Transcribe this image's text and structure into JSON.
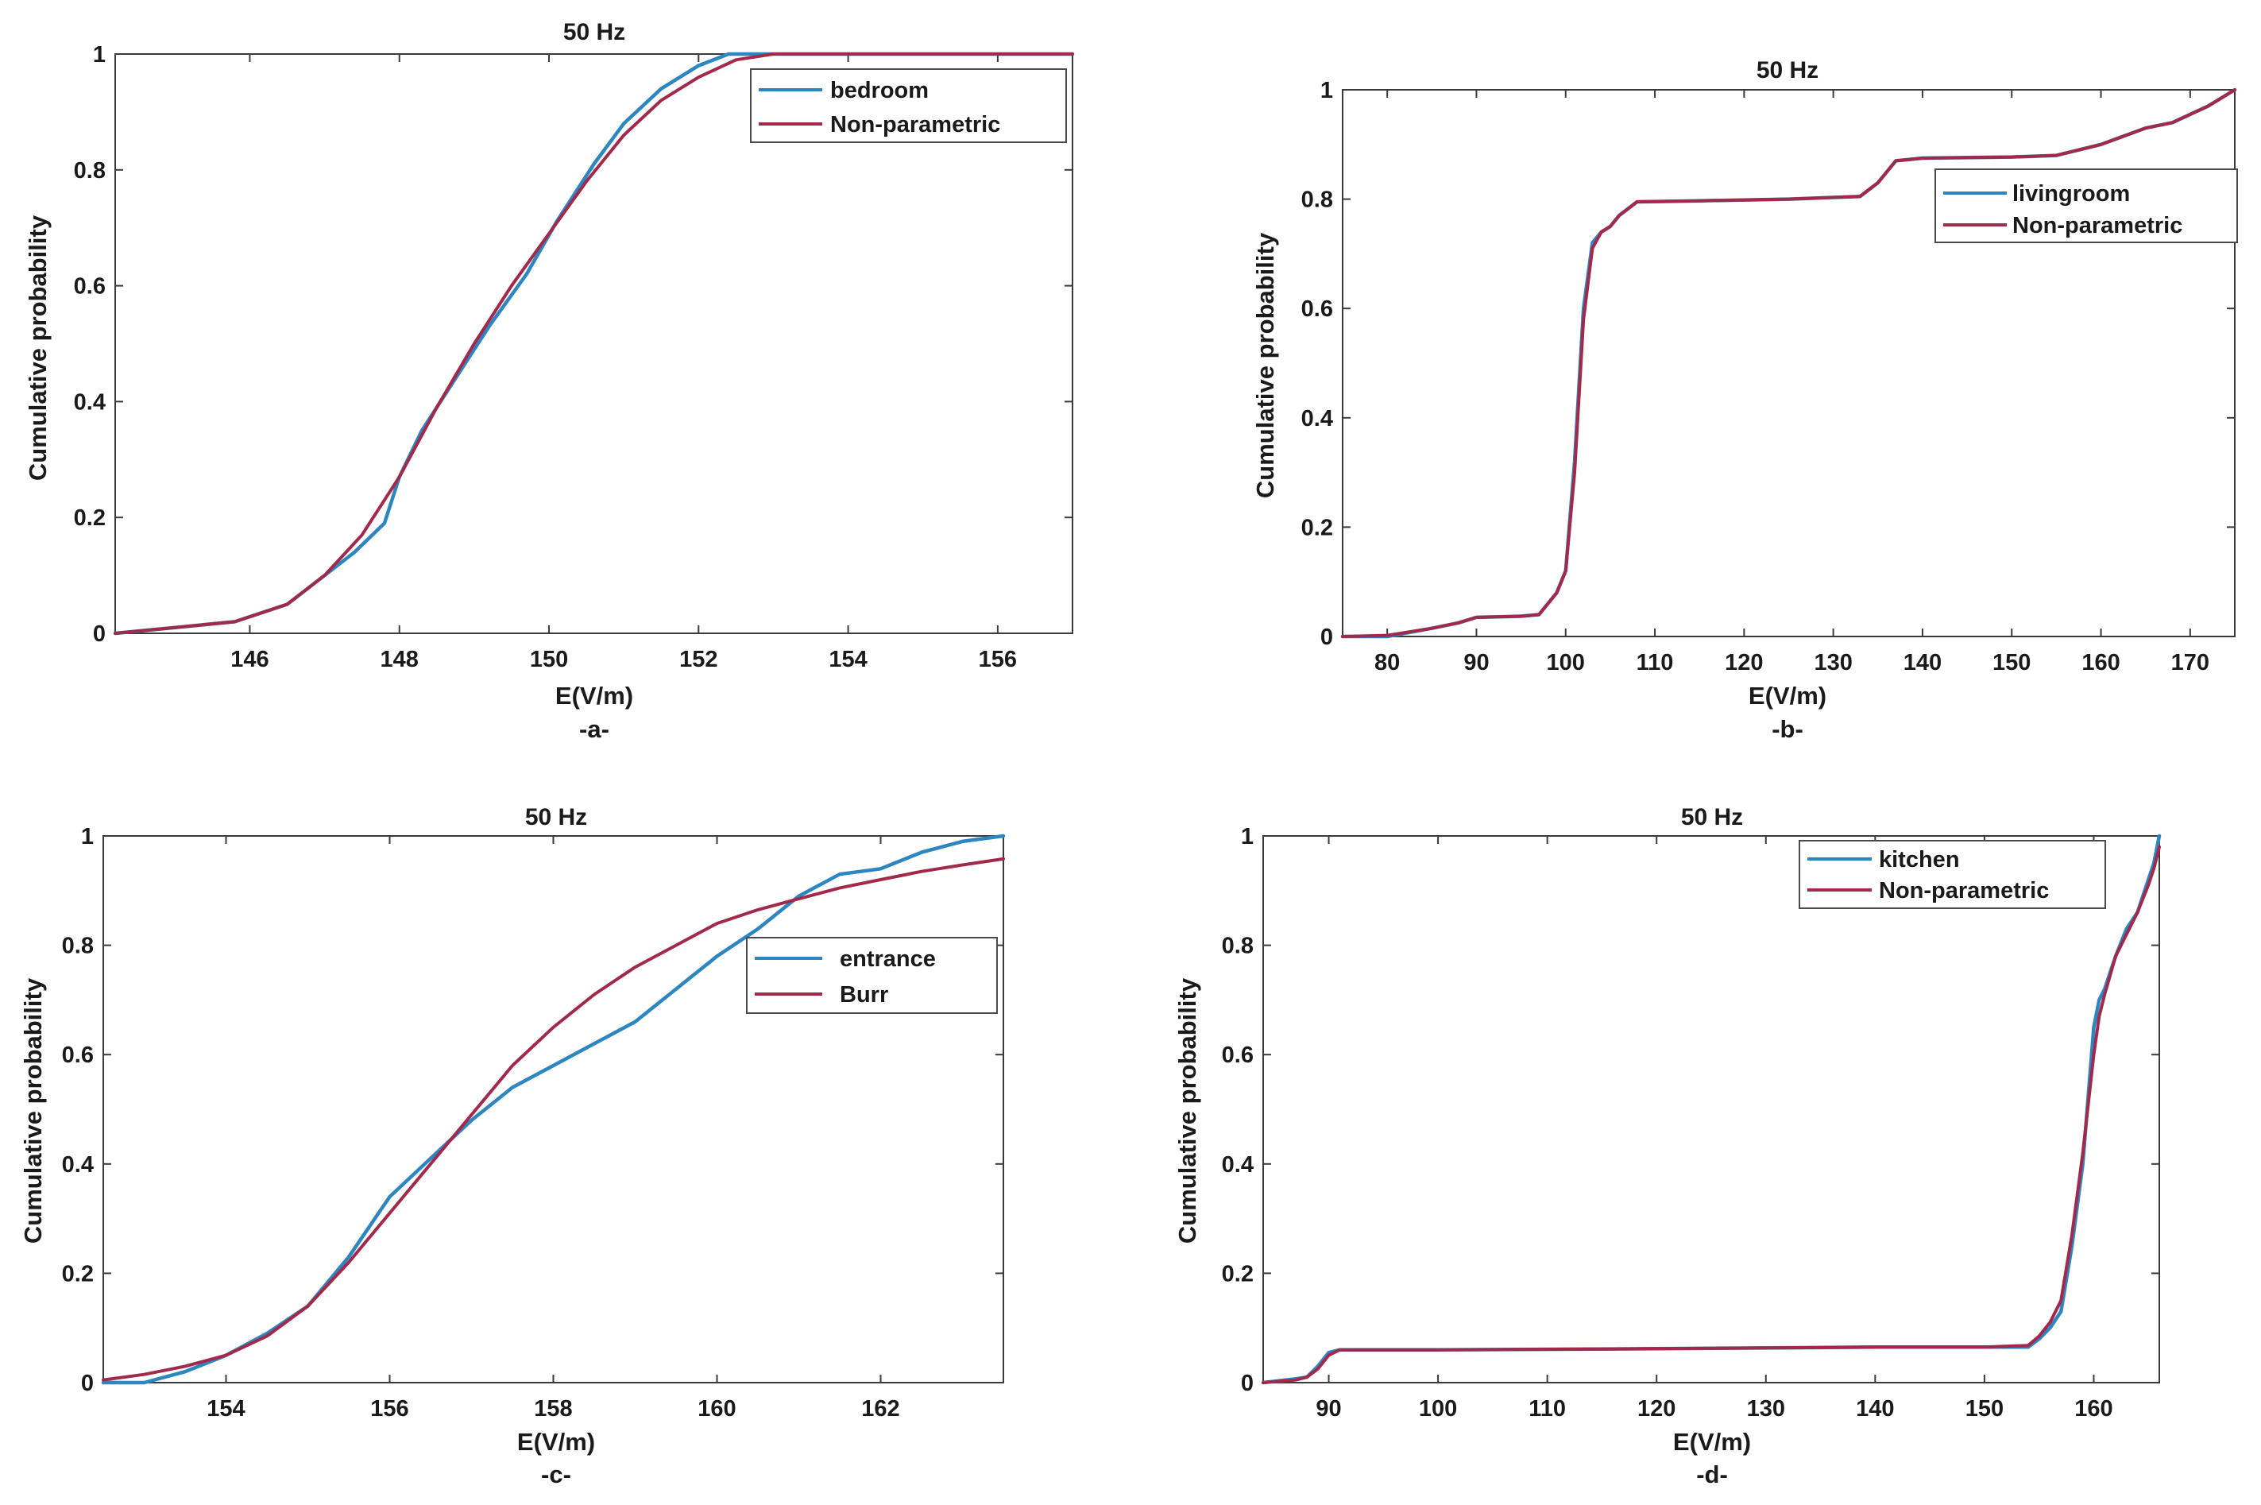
{
  "colors": {
    "empirical": "#2E86C1",
    "fitted": "#A2294A"
  },
  "chart_data": [
    {
      "type": "line",
      "panel": "-a-",
      "title": "50 Hz",
      "xlabel": "E(V/m)",
      "ylabel": "Cumulative probability",
      "xlim": [
        144.2,
        157
      ],
      "ylim": [
        0,
        1
      ],
      "xticks": [
        146,
        148,
        150,
        152,
        154,
        156
      ],
      "yticks": [
        0,
        0.2,
        0.4,
        0.6,
        0.8,
        1
      ],
      "legend_position": "top-right",
      "series": [
        {
          "name": "bedroom",
          "role": "empirical",
          "x": [
            144.2,
            145,
            145.8,
            146.5,
            147,
            147.4,
            147.8,
            148,
            148.3,
            148.7,
            149.2,
            149.7,
            150.1,
            150.6,
            151,
            151.5,
            152,
            152.4,
            152.8,
            153.5,
            157
          ],
          "y": [
            0,
            0.01,
            0.02,
            0.05,
            0.1,
            0.14,
            0.19,
            0.27,
            0.35,
            0.43,
            0.53,
            0.62,
            0.71,
            0.81,
            0.88,
            0.94,
            0.98,
            1,
            1,
            1,
            1
          ]
        },
        {
          "name": "Non-parametric",
          "role": "fitted",
          "x": [
            144.2,
            145,
            145.8,
            146.5,
            147,
            147.5,
            148,
            148.5,
            149,
            149.5,
            150,
            150.5,
            151,
            151.5,
            152,
            152.5,
            153,
            154,
            157
          ],
          "y": [
            0,
            0.01,
            0.02,
            0.05,
            0.1,
            0.17,
            0.27,
            0.39,
            0.5,
            0.6,
            0.69,
            0.78,
            0.86,
            0.92,
            0.96,
            0.99,
            1,
            1,
            1
          ]
        }
      ]
    },
    {
      "type": "line",
      "panel": "-b-",
      "title": "50 Hz",
      "xlabel": "E(V/m)",
      "ylabel": "Cumulative probability",
      "xlim": [
        75,
        175
      ],
      "ylim": [
        0,
        1
      ],
      "xticks": [
        80,
        90,
        100,
        110,
        120,
        130,
        140,
        150,
        160,
        170
      ],
      "yticks": [
        0,
        0.2,
        0.4,
        0.6,
        0.8,
        1
      ],
      "legend_position": "top-right",
      "series": [
        {
          "name": "livingroom",
          "role": "empirical",
          "x": [
            75,
            80,
            85,
            88,
            90,
            95,
            97,
            99,
            100,
            101,
            102,
            103,
            104,
            105,
            106,
            108,
            115,
            125,
            133,
            135,
            137,
            140,
            150,
            155,
            160,
            165,
            168,
            172,
            175
          ],
          "y": [
            0,
            0,
            0.015,
            0.025,
            0.035,
            0.037,
            0.04,
            0.08,
            0.12,
            0.32,
            0.6,
            0.72,
            0.74,
            0.75,
            0.77,
            0.795,
            0.797,
            0.8,
            0.805,
            0.83,
            0.87,
            0.875,
            0.877,
            0.88,
            0.9,
            0.93,
            0.94,
            0.97,
            1
          ]
        },
        {
          "name": "Non-parametric",
          "role": "fitted",
          "x": [
            75,
            80,
            85,
            88,
            90,
            95,
            97,
            99,
            100,
            101,
            102,
            103,
            104,
            105,
            106,
            108,
            115,
            125,
            133,
            135,
            137,
            140,
            150,
            155,
            160,
            165,
            168,
            172,
            175
          ],
          "y": [
            0,
            0.002,
            0.015,
            0.025,
            0.035,
            0.037,
            0.04,
            0.08,
            0.12,
            0.3,
            0.58,
            0.71,
            0.74,
            0.75,
            0.77,
            0.795,
            0.797,
            0.8,
            0.805,
            0.83,
            0.87,
            0.875,
            0.877,
            0.88,
            0.9,
            0.93,
            0.94,
            0.97,
            1
          ]
        }
      ]
    },
    {
      "type": "line",
      "panel": "-c-",
      "title": "50 Hz",
      "xlabel": "E(V/m)",
      "ylabel": "Cumulative probability",
      "xlim": [
        152.5,
        163.5
      ],
      "ylim": [
        0,
        1
      ],
      "xticks": [
        154,
        156,
        158,
        160,
        162
      ],
      "yticks": [
        0,
        0.2,
        0.4,
        0.6,
        0.8,
        1
      ],
      "legend_position": "right",
      "series": [
        {
          "name": "entrance",
          "role": "empirical",
          "x": [
            152.5,
            153,
            153.5,
            154,
            154.5,
            155,
            155.5,
            156,
            156.5,
            157,
            157.5,
            158,
            158.5,
            159,
            159.5,
            160,
            160.5,
            161,
            161.5,
            162,
            162.5,
            163,
            163.5
          ],
          "y": [
            0,
            0,
            0.02,
            0.05,
            0.09,
            0.14,
            0.23,
            0.34,
            0.41,
            0.48,
            0.54,
            0.58,
            0.62,
            0.66,
            0.72,
            0.78,
            0.83,
            0.89,
            0.93,
            0.94,
            0.97,
            0.99,
            1
          ]
        },
        {
          "name": "Burr",
          "role": "fitted",
          "x": [
            152.5,
            153,
            153.5,
            154,
            154.5,
            155,
            155.5,
            156,
            156.5,
            157,
            157.5,
            158,
            158.5,
            159,
            159.5,
            160,
            160.5,
            161,
            161.5,
            162,
            162.5,
            163,
            163.5
          ],
          "y": [
            0.005,
            0.015,
            0.03,
            0.05,
            0.085,
            0.14,
            0.22,
            0.31,
            0.4,
            0.49,
            0.58,
            0.65,
            0.71,
            0.76,
            0.8,
            0.84,
            0.865,
            0.885,
            0.905,
            0.92,
            0.935,
            0.947,
            0.958
          ]
        }
      ]
    },
    {
      "type": "line",
      "panel": "-d-",
      "title": "50 Hz",
      "xlabel": "E(V/m)",
      "ylabel": "Cumulative probability",
      "xlim": [
        84,
        166
      ],
      "ylim": [
        0,
        1
      ],
      "xticks": [
        90,
        100,
        110,
        120,
        130,
        140,
        150,
        160
      ],
      "yticks": [
        0,
        0.2,
        0.4,
        0.6,
        0.8,
        1
      ],
      "legend_position": "top-right",
      "series": [
        {
          "name": "kitchen",
          "role": "empirical",
          "x": [
            84,
            87,
            88,
            89,
            90,
            91,
            100,
            120,
            140,
            150,
            154,
            155,
            156,
            157,
            158,
            159,
            160,
            160.5,
            161,
            162,
            163,
            164,
            165,
            165.5,
            166
          ],
          "y": [
            0,
            0.007,
            0.01,
            0.03,
            0.055,
            0.06,
            0.06,
            0.062,
            0.065,
            0.065,
            0.065,
            0.08,
            0.1,
            0.13,
            0.25,
            0.4,
            0.65,
            0.7,
            0.72,
            0.78,
            0.83,
            0.86,
            0.92,
            0.95,
            1
          ]
        },
        {
          "name": "Non-parametric",
          "role": "fitted",
          "x": [
            84,
            87,
            88,
            89,
            90,
            91,
            100,
            120,
            140,
            150,
            154,
            155,
            156,
            157,
            158,
            159,
            160,
            160.5,
            161,
            162,
            163,
            164,
            165,
            165.5,
            166
          ],
          "y": [
            0,
            0.005,
            0.01,
            0.025,
            0.05,
            0.06,
            0.06,
            0.062,
            0.065,
            0.065,
            0.068,
            0.085,
            0.11,
            0.15,
            0.27,
            0.42,
            0.6,
            0.67,
            0.71,
            0.78,
            0.82,
            0.86,
            0.91,
            0.94,
            0.98
          ]
        }
      ]
    }
  ]
}
